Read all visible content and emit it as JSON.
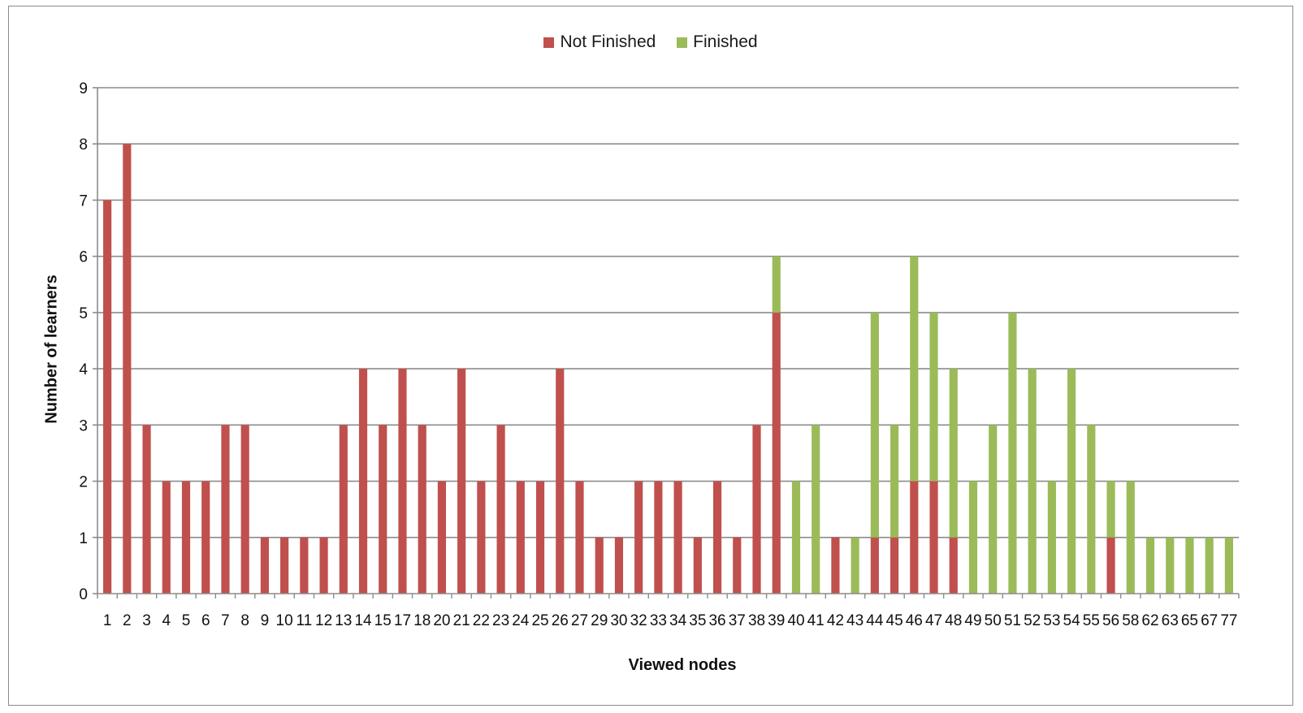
{
  "chart_data": {
    "type": "bar",
    "stacked": true,
    "title": "",
    "xlabel": "Viewed nodes",
    "ylabel": "Number of learners",
    "ylim": [
      0,
      9
    ],
    "yticks": [
      "0",
      "1",
      "2",
      "3",
      "4",
      "5",
      "6",
      "7",
      "8",
      "9"
    ],
    "grid": true,
    "legend_position": "top",
    "categories": [
      "1",
      "2",
      "3",
      "4",
      "5",
      "6",
      "7",
      "8",
      "9",
      "10",
      "11",
      "12",
      "13",
      "14",
      "15",
      "17",
      "18",
      "20",
      "21",
      "22",
      "23",
      "24",
      "25",
      "26",
      "27",
      "29",
      "30",
      "32",
      "33",
      "34",
      "35",
      "36",
      "37",
      "38",
      "39",
      "40",
      "41",
      "42",
      "43",
      "44",
      "45",
      "46",
      "47",
      "48",
      "49",
      "50",
      "51",
      "52",
      "53",
      "54",
      "55",
      "56",
      "58",
      "62",
      "63",
      "65",
      "67",
      "77"
    ],
    "series": [
      {
        "name": "Not Finished",
        "color": "#c0504d",
        "values": [
          7,
          8,
          3,
          2,
          2,
          2,
          3,
          3,
          1,
          1,
          1,
          1,
          3,
          4,
          3,
          4,
          3,
          2,
          4,
          2,
          3,
          2,
          2,
          4,
          2,
          1,
          1,
          2,
          2,
          2,
          1,
          2,
          1,
          3,
          5,
          0,
          0,
          1,
          0,
          1,
          1,
          2,
          2,
          1,
          0,
          0,
          0,
          0,
          0,
          0,
          0,
          1,
          0,
          0,
          0,
          0,
          0,
          0
        ]
      },
      {
        "name": "Finished",
        "color": "#9bbb59",
        "values": [
          0,
          0,
          0,
          0,
          0,
          0,
          0,
          0,
          0,
          0,
          0,
          0,
          0,
          0,
          0,
          0,
          0,
          0,
          0,
          0,
          0,
          0,
          0,
          0,
          0,
          0,
          0,
          0,
          0,
          0,
          0,
          0,
          0,
          0,
          1,
          2,
          3,
          0,
          1,
          4,
          2,
          4,
          3,
          3,
          2,
          3,
          5,
          4,
          2,
          4,
          3,
          1,
          2,
          1,
          1,
          1,
          1,
          1
        ]
      }
    ]
  }
}
